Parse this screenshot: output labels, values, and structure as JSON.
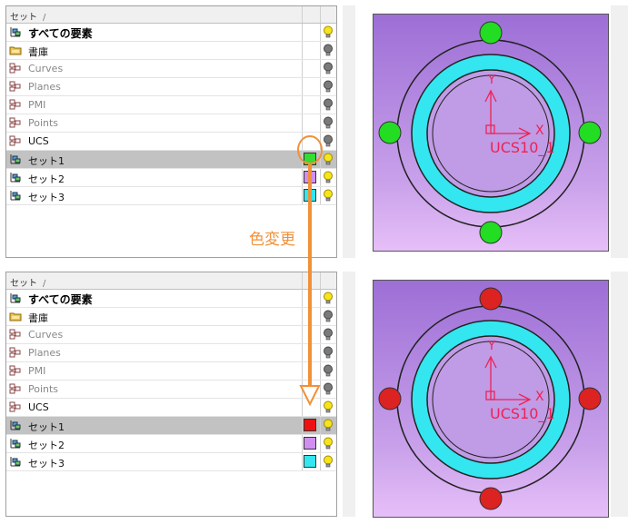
{
  "callout": "色変更",
  "top": {
    "header": {
      "col_label": "セット",
      "sort_glyph": "/"
    },
    "rows": [
      {
        "label": "すべての要素",
        "icon": "set-icon",
        "bulb": "on"
      },
      {
        "label": "書庫",
        "icon": "folder-icon",
        "bulb": "off"
      },
      {
        "label": "Curves",
        "icon": "layer-icon",
        "bulb": "off"
      },
      {
        "label": "Planes",
        "icon": "layer-icon",
        "bulb": "off"
      },
      {
        "label": "PMI",
        "icon": "layer-icon",
        "bulb": "off"
      },
      {
        "label": "Points",
        "icon": "layer-icon",
        "bulb": "off"
      },
      {
        "label": "UCS",
        "icon": "layer-icon",
        "bulb": "off"
      },
      {
        "label": "セット1",
        "icon": "set-icon",
        "bulb": "on",
        "swatch": "#33dd33",
        "selected": true
      },
      {
        "label": "セット2",
        "icon": "set-icon",
        "bulb": "on",
        "swatch": "#d08ff0"
      },
      {
        "label": "セット3",
        "icon": "set-icon",
        "bulb": "on",
        "swatch": "#33e6f0"
      }
    ],
    "view": {
      "ucs_label": "UCS10_1",
      "axis_x": "X",
      "axis_y": "Y",
      "marker_color": "#22dd22"
    }
  },
  "bottom": {
    "header": {
      "col_label": "セット",
      "sort_glyph": "/"
    },
    "rows": [
      {
        "label": "すべての要素",
        "icon": "set-icon",
        "bulb": "on"
      },
      {
        "label": "書庫",
        "icon": "folder-icon",
        "bulb": "off"
      },
      {
        "label": "Curves",
        "icon": "layer-icon",
        "bulb": "off"
      },
      {
        "label": "Planes",
        "icon": "layer-icon",
        "bulb": "off"
      },
      {
        "label": "PMI",
        "icon": "layer-icon",
        "bulb": "off"
      },
      {
        "label": "Points",
        "icon": "layer-icon",
        "bulb": "off"
      },
      {
        "label": "UCS",
        "icon": "layer-icon",
        "bulb": "on"
      },
      {
        "label": "セット1",
        "icon": "set-icon",
        "bulb": "on",
        "swatch": "#ee1111",
        "selected": true
      },
      {
        "label": "セット2",
        "icon": "set-icon",
        "bulb": "on",
        "swatch": "#d08ff0"
      },
      {
        "label": "セット3",
        "icon": "set-icon",
        "bulb": "on",
        "swatch": "#33e6f0"
      }
    ],
    "view": {
      "ucs_label": "UCS10_1",
      "axis_x": "X",
      "axis_y": "Y",
      "marker_color": "#dd2222"
    }
  },
  "colors": {
    "callout": "#f0913a",
    "ring": "#33e6f0",
    "background": "#b489e2",
    "axis": "#ee2255"
  }
}
